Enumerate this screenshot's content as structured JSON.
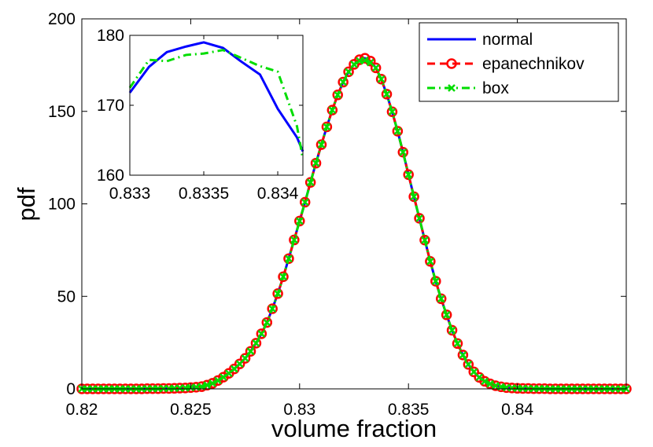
{
  "chart_data": {
    "type": "line",
    "main": {
      "xlabel": "volume fraction",
      "ylabel": "pdf",
      "xlim": [
        0.82,
        0.845
      ],
      "ylim": [
        0,
        200
      ],
      "xticks": [
        0.82,
        0.825,
        0.83,
        0.835,
        0.84
      ],
      "xtick_labels": [
        "0.82",
        "0.825",
        "0.83",
        "0.835",
        "0.84"
      ],
      "yticks": [
        0,
        50,
        100,
        150,
        200
      ],
      "ytick_labels": [
        "0",
        "50",
        "100",
        "150",
        "200"
      ],
      "grid": false,
      "x_start": 0.82,
      "x_step": 0.00025,
      "series": [
        {
          "name": "normal",
          "color": "#0000ff",
          "line": "solid",
          "marker": "none",
          "values": [
            0,
            0,
            0,
            0,
            0,
            0,
            0,
            0,
            0,
            0,
            0,
            0,
            0.1,
            0.1,
            0.1,
            0.2,
            0.2,
            0.3,
            0.4,
            0.5,
            0.7,
            0.9,
            1.2,
            2.0,
            3.0,
            4.5,
            6.3,
            8.4,
            10.8,
            13.5,
            16.5,
            20.3,
            24.7,
            29.8,
            35.9,
            43.3,
            51.5,
            60.6,
            70.4,
            80.5,
            90.7,
            100.9,
            111.6,
            122.0,
            132.0,
            141.6,
            150.7,
            158.9,
            165.8,
            171.4,
            175.4,
            177.9,
            178.7,
            177.2,
            173.5,
            167.4,
            159.3,
            149.8,
            139.3,
            127.9,
            115.8,
            103.9,
            92.2,
            80.4,
            68.9,
            58.2,
            48.7,
            40.0,
            31.7,
            24.5,
            18.3,
            13.2,
            9.2,
            6.2,
            4.1,
            2.7,
            1.7,
            1.1,
            0.7,
            0.5,
            0.3,
            0.2,
            0.2,
            0.1,
            0.1,
            0.1,
            0,
            0,
            0,
            0,
            0,
            0,
            0,
            0,
            0,
            0,
            0,
            0,
            0,
            0,
            0
          ]
        },
        {
          "name": "epanechnikov",
          "color": "#ff0000",
          "line": "dashed",
          "marker": "circle",
          "values": [
            0,
            0,
            0,
            0,
            0,
            0,
            0,
            0,
            0,
            0,
            0,
            0,
            0.1,
            0.1,
            0.1,
            0.2,
            0.2,
            0.3,
            0.4,
            0.5,
            0.7,
            0.9,
            1.2,
            2.0,
            3.0,
            4.5,
            6.3,
            8.4,
            10.8,
            13.5,
            16.5,
            20.3,
            24.7,
            29.8,
            35.9,
            43.3,
            51.5,
            60.6,
            70.4,
            80.5,
            90.7,
            100.9,
            111.6,
            122.0,
            132.0,
            141.6,
            150.7,
            158.9,
            165.8,
            171.4,
            175.4,
            177.9,
            178.7,
            177.2,
            173.5,
            167.4,
            159.3,
            149.8,
            139.3,
            127.9,
            115.8,
            103.9,
            92.2,
            80.4,
            68.9,
            58.2,
            48.7,
            40.0,
            31.7,
            24.5,
            18.3,
            13.2,
            9.2,
            6.2,
            4.1,
            2.7,
            1.7,
            1.1,
            0.7,
            0.5,
            0.3,
            0.2,
            0.2,
            0.1,
            0.1,
            0.1,
            0,
            0,
            0,
            0,
            0,
            0,
            0,
            0,
            0,
            0,
            0,
            0,
            0,
            0,
            0
          ]
        },
        {
          "name": "box",
          "color": "#00dd00",
          "line": "dashdot",
          "marker": "x",
          "values": [
            0,
            0,
            0,
            0,
            0,
            0,
            0,
            0,
            0,
            0,
            0,
            0,
            0.1,
            0.1,
            0.1,
            0.2,
            0.2,
            0.3,
            0.4,
            0.5,
            0.7,
            0.9,
            1.2,
            2.0,
            3.0,
            4.5,
            6.3,
            8.4,
            10.8,
            13.5,
            16.5,
            20.3,
            24.7,
            29.8,
            35.9,
            43.3,
            51.5,
            60.6,
            70.4,
            80.5,
            90.7,
            100.9,
            111.6,
            122.0,
            132.0,
            141.6,
            150.7,
            158.9,
            165.8,
            171.4,
            175.4,
            177.3,
            177.6,
            176.4,
            173.5,
            167.4,
            159.3,
            149.8,
            139.3,
            127.9,
            115.8,
            103.9,
            92.2,
            80.4,
            68.9,
            58.2,
            48.7,
            40.0,
            31.7,
            24.5,
            18.3,
            13.2,
            9.2,
            6.2,
            4.1,
            2.7,
            1.7,
            1.1,
            0.7,
            0.5,
            0.3,
            0.2,
            0.2,
            0.1,
            0.1,
            0.1,
            0,
            0,
            0,
            0,
            0,
            0,
            0,
            0,
            0,
            0,
            0,
            0,
            0,
            0,
            0
          ]
        }
      ]
    },
    "inset": {
      "xlim": [
        0.833,
        0.83417
      ],
      "ylim": [
        160,
        180
      ],
      "xticks": [
        0.833,
        0.8335,
        0.834
      ],
      "xtick_labels": [
        "0.833",
        "0.8335",
        "0.834"
      ],
      "yticks": [
        160,
        170,
        180
      ],
      "ytick_labels": [
        "160",
        "170",
        "180"
      ],
      "series": [
        {
          "name": "normal",
          "color": "#0000ff",
          "line": "solid",
          "x": [
            0.833,
            0.83313,
            0.83325,
            0.83338,
            0.8335,
            0.83363,
            0.83375,
            0.83388,
            0.834,
            0.83413,
            0.83417
          ],
          "values": [
            171.8,
            175.5,
            177.6,
            178.4,
            179.0,
            178.2,
            176.3,
            174.4,
            169.5,
            165.4,
            163.4
          ]
        },
        {
          "name": "box",
          "color": "#00dd00",
          "line": "dashdot",
          "x": [
            0.833,
            0.83313,
            0.83325,
            0.83338,
            0.8335,
            0.83363,
            0.83375,
            0.83388,
            0.834,
            0.83413,
            0.83417
          ],
          "values": [
            172.5,
            176.5,
            176.3,
            177.2,
            177.4,
            177.9,
            176.8,
            175.6,
            174.8,
            167.0,
            162.3
          ]
        }
      ]
    },
    "legend": {
      "placement": "top-right",
      "entries": [
        "normal",
        "epanechnikov",
        "box"
      ]
    }
  }
}
